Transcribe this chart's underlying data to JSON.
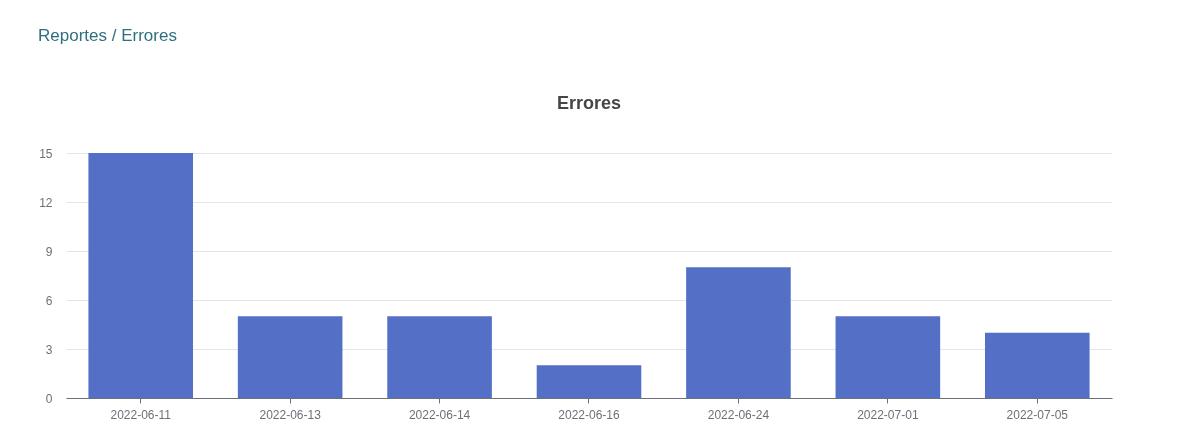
{
  "chart_data": {
    "type": "bar",
    "title": "Errores",
    "annotations": [
      "Reportes / Errores"
    ],
    "categories": [
      "2022-06-11",
      "2022-06-13",
      "2022-06-14",
      "2022-06-16",
      "2022-06-24",
      "2022-07-01",
      "2022-07-05"
    ],
    "values": [
      15,
      5,
      5,
      2,
      8,
      5,
      4
    ],
    "color": "#5470c6",
    "ylim": [
      0,
      15
    ],
    "yticks": [
      0,
      3,
      6,
      9,
      12,
      15
    ],
    "grid": "y"
  }
}
